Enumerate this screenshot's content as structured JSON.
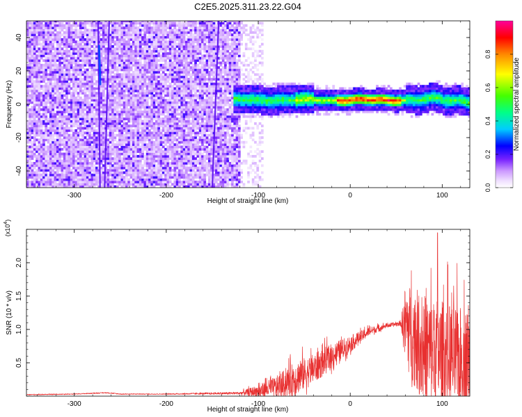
{
  "figure_title": "C2E5.2025.311.23.22.G04",
  "chart_data": [
    {
      "type": "heatmap",
      "title": "C2E5.2025.311.23.22.G04",
      "xlabel": "Height of straight line (km)",
      "ylabel": "Frequency (Hz)",
      "xlim": [
        -352,
        130
      ],
      "ylim": [
        -50,
        50
      ],
      "x_ticks": [
        -300,
        -200,
        -100,
        0,
        100
      ],
      "x_tick_labels": [
        "-300",
        "-200",
        "-100",
        "0",
        "100"
      ],
      "y_ticks": [
        -40,
        -20,
        0,
        20,
        40
      ],
      "y_tick_labels": [
        "-40",
        "-20",
        "0",
        "20",
        "40"
      ],
      "colorbar": {
        "label": "Normalized spectral amplitude",
        "range": [
          0,
          1
        ],
        "ticks": [
          0.0,
          0.2,
          0.4,
          0.6,
          0.8
        ],
        "tick_labels": [
          "0.0",
          "0.2",
          "0.4",
          "0.6",
          "0.8"
        ],
        "colors": [
          "#ffffff",
          "#e8d8ff",
          "#9966ff",
          "#5500ee",
          "#0000ff",
          "#00ccff",
          "#00ff88",
          "#66ff00",
          "#ffff00",
          "#ff8800",
          "#ff0000",
          "#ff0099"
        ]
      },
      "regions": [
        {
          "name": "noise field",
          "x_range": [
            -352,
            -120
          ],
          "mean_amplitude": 0.08
        },
        {
          "name": "sparse noise",
          "x_range": [
            -120,
            -95
          ],
          "mean_amplitude": 0.02
        },
        {
          "name": "signal band",
          "x_range": [
            -128,
            130
          ],
          "center_freq_hz": 2,
          "half_width_hz": 4,
          "peak_amplitude": 1.0,
          "peak_x_range": [
            -15,
            55
          ]
        }
      ],
      "streaks": [
        {
          "x_at_-50hz": -272,
          "x_at_50hz": -274
        },
        {
          "x_at_-50hz": -267,
          "x_at_50hz": -262
        },
        {
          "x_at_-50hz": -150,
          "x_at_50hz": -143
        },
        {
          "x_at_-50hz": -268,
          "x_at_50hz": -274,
          "color": "#0044ff",
          "freq_range": [
            12,
            35
          ]
        }
      ]
    },
    {
      "type": "line",
      "xlabel": "Height of straight line (km)",
      "ylabel": "SNR (10 * v/v)",
      "scale_label": "(x10",
      "scale_exponent": "4",
      "xlim": [
        -352,
        130
      ],
      "ylim": [
        0,
        2.5
      ],
      "x_ticks": [
        -300,
        -200,
        -100,
        0,
        100
      ],
      "x_tick_labels": [
        "-300",
        "-200",
        "-100",
        "0",
        "100"
      ],
      "y_ticks": [
        0.5,
        1.0,
        1.5,
        2.0
      ],
      "y_tick_labels": [
        "0.5",
        "1.0",
        "1.5",
        "2.0"
      ],
      "color": "#e83030",
      "envelope": {
        "x": [
          -352,
          -300,
          -265,
          -250,
          -200,
          -120,
          -100,
          -80,
          -60,
          -40,
          -20,
          0,
          20,
          40,
          55,
          60,
          80,
          100,
          130
        ],
        "base": [
          0.02,
          0.03,
          0.05,
          0.03,
          0.03,
          0.04,
          0.05,
          0.1,
          0.2,
          0.35,
          0.55,
          0.75,
          0.95,
          1.05,
          1.08,
          0.9,
          0.5,
          0.4,
          0.35
        ],
        "amplitude": [
          0.01,
          0.01,
          0.01,
          0.01,
          0.01,
          0.03,
          0.15,
          0.25,
          0.4,
          0.35,
          0.3,
          0.2,
          0.1,
          0.05,
          0.05,
          1.0,
          1.3,
          1.3,
          1.2
        ]
      },
      "peak": {
        "x": 95,
        "y": 2.45
      }
    }
  ]
}
